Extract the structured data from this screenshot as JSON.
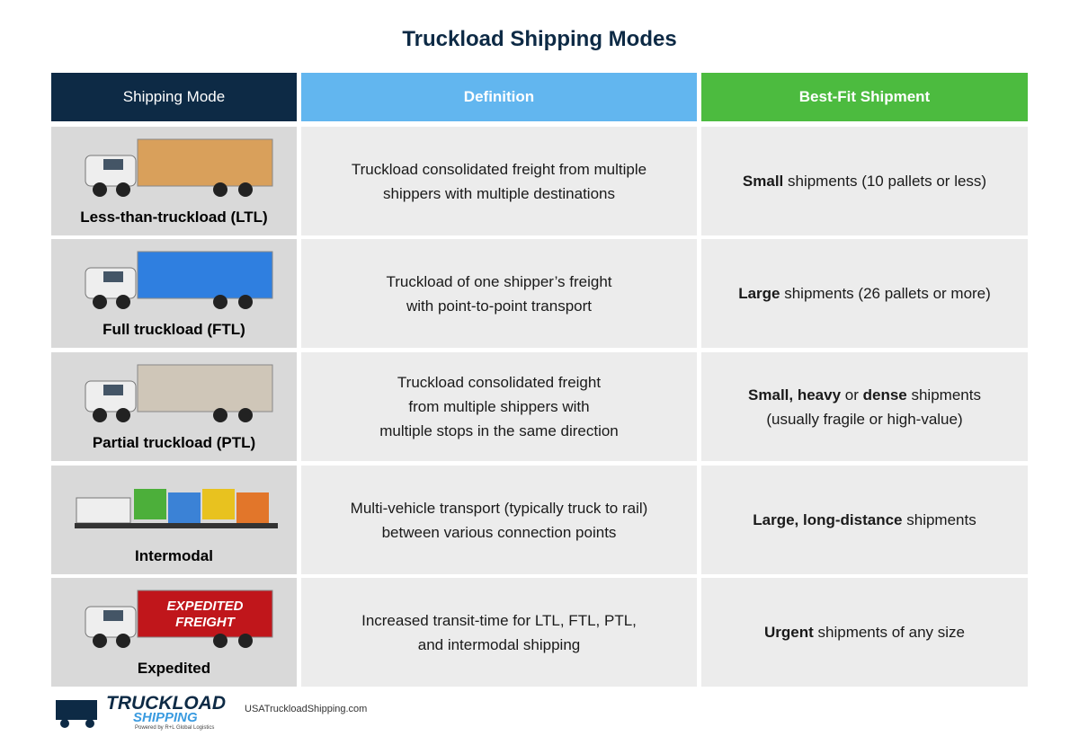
{
  "header": {
    "title": "Truckload Shipping Modes"
  },
  "table": {
    "columns": [
      "Shipping Mode",
      "Definition",
      "Best-Fit Shipment"
    ],
    "rows": [
      {
        "mode": "Less-than-truckload (LTL)",
        "definition": [
          "Truckload consolidated freight from multiple",
          "shippers with multiple destinations"
        ],
        "best_fit": [
          [
            {
              "text": "Small",
              "bold": true
            },
            {
              "text": " shipments (10 pallets or less)"
            }
          ]
        ]
      },
      {
        "mode": "Full truckload (FTL)",
        "definition": [
          "Truckload of one shipper’s freight",
          "with point-to-point transport"
        ],
        "best_fit": [
          [
            {
              "text": "Large",
              "bold": true
            },
            {
              "text": " shipments (26 pallets or more)"
            }
          ]
        ]
      },
      {
        "mode": "Partial truckload (PTL)",
        "definition": [
          "Truckload consolidated freight",
          "from multiple shippers with",
          "multiple stops in the same direction"
        ],
        "best_fit": [
          [
            {
              "text": "Small, heavy",
              "bold": true
            },
            {
              "text": " or "
            },
            {
              "text": "dense",
              "bold": true
            },
            {
              "text": " shipments"
            }
          ],
          [
            {
              "text": "(usually fragile or high-value)"
            }
          ]
        ]
      },
      {
        "mode": "Intermodal",
        "definition": [
          "Multi-vehicle transport (typically truck to rail)",
          "between various connection points"
        ],
        "best_fit": [
          [
            {
              "text": "Large, long-distance",
              "bold": true
            },
            {
              "text": " shipments"
            }
          ]
        ]
      },
      {
        "mode": "Expedited",
        "definition": [
          "Increased transit-time for LTL, FTL, PTL,",
          "and intermodal shipping"
        ],
        "best_fit": [
          [
            {
              "text": "Urgent",
              "bold": true
            },
            {
              "text": " shipments of any size"
            }
          ]
        ],
        "graphic_text": [
          "EXPEDITED",
          "FREIGHT"
        ]
      }
    ]
  },
  "footer": {
    "logo": [
      "TRUCKLOAD",
      "SHIPPING"
    ],
    "tagline": "Powered by R+L Global Logistics",
    "url": "USATruckloadShipping.com"
  }
}
